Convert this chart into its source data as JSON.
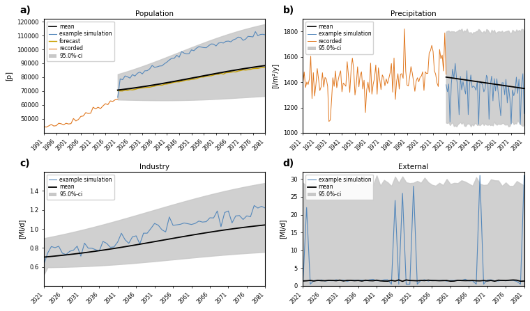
{
  "fig_width": 7.6,
  "fig_height": 4.47,
  "dpi": 100,
  "background_color": "#ffffff",
  "ci_color": "#c8c8c8",
  "ci_alpha": 0.85,
  "mean_color": "#000000",
  "sim_color": "#5588bb",
  "recorded_color": "#e07820",
  "forecast_color": "#c8a000",
  "panel_a": {
    "title": "Population",
    "ylabel": "[p]",
    "xlim_left": 1991,
    "xlim_right": 2081,
    "ylim_bottom": 40000,
    "ylim_top": 122000,
    "yticks": [
      50000,
      60000,
      70000,
      80000,
      90000,
      100000,
      110000,
      120000
    ],
    "xticks": [
      1991,
      1996,
      2001,
      2006,
      2011,
      2016,
      2021,
      2026,
      2031,
      2036,
      2041,
      2046,
      2051,
      2056,
      2061,
      2066,
      2071,
      2076,
      2081
    ],
    "legend": [
      "mean",
      "example simulation",
      "forecast",
      "recorded",
      "95.0%-ci"
    ]
  },
  "panel_b": {
    "title": "Precipitation",
    "ylabel": "[l/m²/y]",
    "xlim_left": 1911,
    "xlim_right": 2081,
    "ylim_bottom": 1000,
    "ylim_top": 1900,
    "yticks": [
      1000,
      1200,
      1400,
      1600,
      1800
    ],
    "xticks": [
      1911,
      1921,
      1931,
      1941,
      1951,
      1961,
      1971,
      1981,
      1991,
      2001,
      2011,
      2021,
      2031,
      2041,
      2051,
      2061,
      2071,
      2081
    ],
    "legend": [
      "mean",
      "example simulation",
      "recorded",
      "95.0%-ci"
    ]
  },
  "panel_c": {
    "title": "Industry",
    "ylabel": "[Ml/d]",
    "xlim_left": 2021,
    "xlim_right": 2081,
    "ylim_bottom": 0.4,
    "ylim_top": 1.6,
    "yticks": [
      0.6,
      0.8,
      1.0,
      1.2,
      1.4
    ],
    "xticks": [
      2021,
      2026,
      2031,
      2036,
      2041,
      2046,
      2051,
      2056,
      2061,
      2066,
      2071,
      2076,
      2081
    ],
    "legend": [
      "example simulation",
      "mean",
      "95.0%-ci"
    ]
  },
  "panel_d": {
    "title": "External",
    "ylabel": "[Ml/d]",
    "xlim_left": 2021,
    "xlim_right": 2081,
    "ylim_bottom": 0,
    "ylim_top": 32,
    "yticks": [
      0,
      5,
      10,
      15,
      20,
      25,
      30
    ],
    "xticks": [
      2021,
      2026,
      2031,
      2036,
      2041,
      2046,
      2051,
      2056,
      2061,
      2066,
      2071,
      2076,
      2081
    ],
    "legend": [
      "example simulation",
      "mean",
      "95.0%-ci"
    ]
  }
}
